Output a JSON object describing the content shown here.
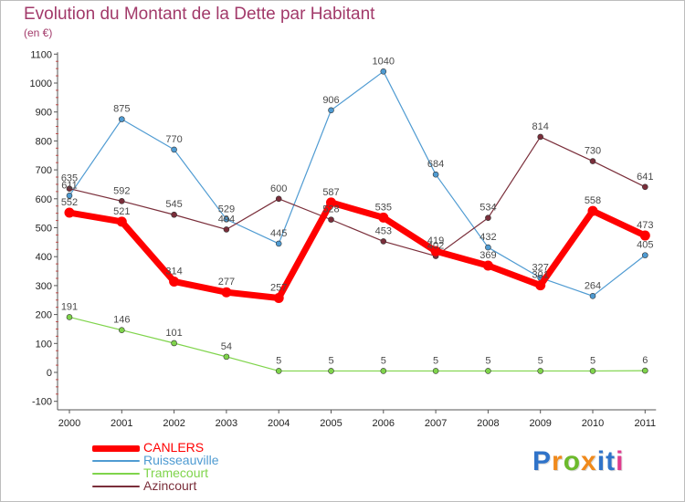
{
  "title": "Evolution du Montant de la Dette par Habitant",
  "subtitle": "(en €)",
  "brand": {
    "letters": [
      "P",
      "r",
      "o",
      "x",
      "i",
      "t",
      "i"
    ],
    "colors": [
      "#2f73c9",
      "#f08a1c",
      "#6cba2c",
      "#f08a1c",
      "#2f73c9",
      "#2f73c9",
      "#e03c8f"
    ]
  },
  "chart_data": {
    "type": "line",
    "title": "Evolution du Montant de la Dette par Habitant",
    "subtitle": "(en €)",
    "xlabel": "",
    "ylabel": "",
    "categories": [
      "2000",
      "2001",
      "2002",
      "2003",
      "2004",
      "2005",
      "2006",
      "2007",
      "2008",
      "2009",
      "2010",
      "2011"
    ],
    "ylim": [
      -100,
      1100
    ],
    "yticks": [
      -100,
      0,
      100,
      200,
      300,
      400,
      500,
      600,
      700,
      800,
      900,
      1000,
      1100
    ],
    "grid": false,
    "legend": "bottom-left",
    "series": [
      {
        "name": "CANLERS",
        "color": "#ff0000",
        "values": [
          552,
          521,
          314,
          277,
          257,
          587,
          535,
          419,
          369,
          301,
          558,
          473
        ]
      },
      {
        "name": "Ruisseauville",
        "color": "#4f9bd2",
        "values": [
          611,
          875,
          770,
          529,
          445,
          906,
          1040,
          684,
          432,
          327,
          264,
          405
        ]
      },
      {
        "name": "Tramecourt",
        "color": "#7fd44b",
        "values": [
          191,
          146,
          101,
          54,
          5,
          5,
          5,
          5,
          5,
          5,
          5,
          6
        ]
      },
      {
        "name": "Azincourt",
        "color": "#7a2e3a",
        "values": [
          635,
          592,
          545,
          494,
          600,
          528,
          453,
          402,
          534,
          814,
          730,
          641
        ]
      }
    ]
  }
}
